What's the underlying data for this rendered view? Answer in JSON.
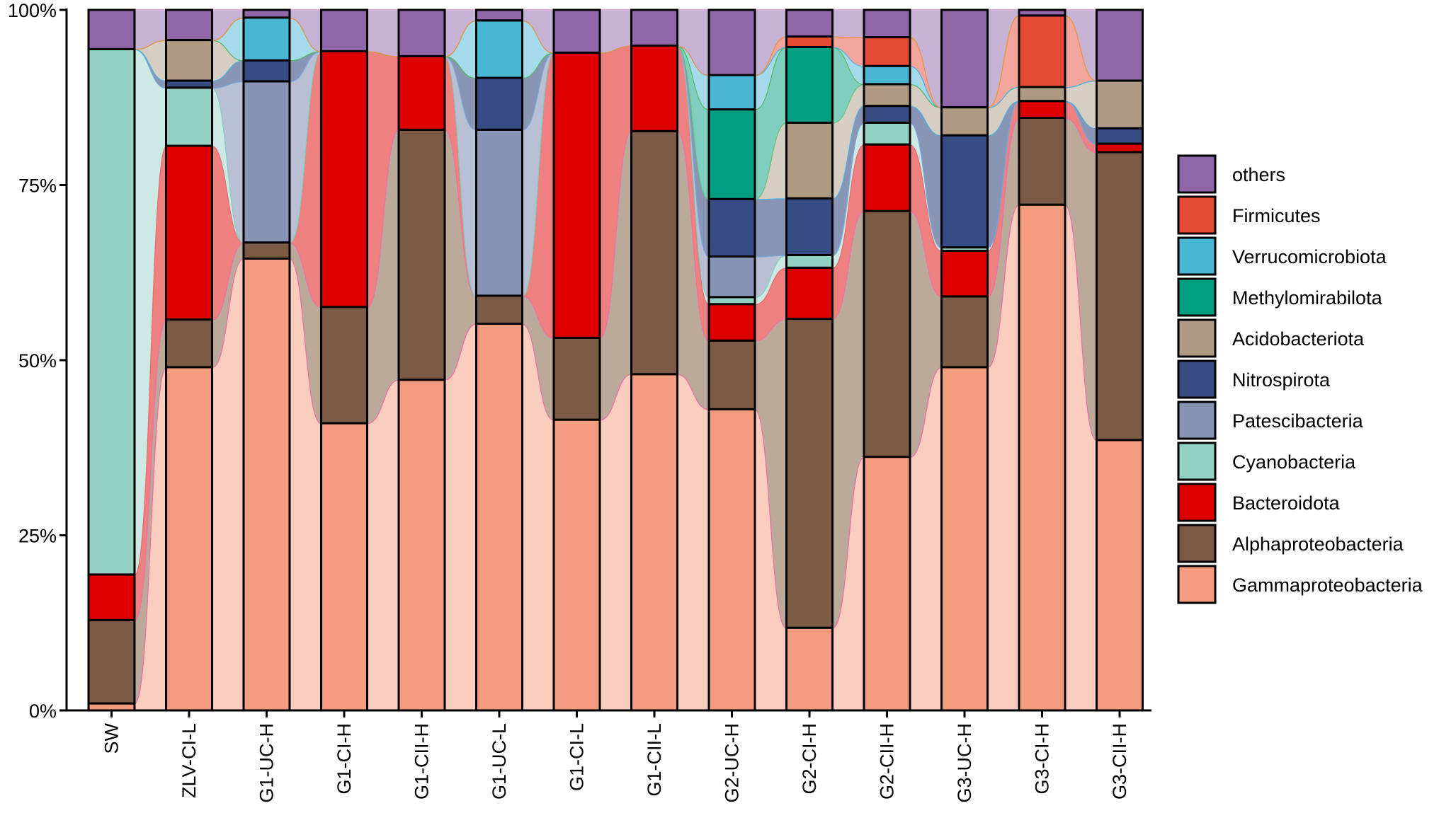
{
  "chart_data": {
    "type": "bar",
    "stacked": true,
    "normalized": true,
    "title": "",
    "xlabel": "",
    "ylabel": "",
    "ylim": [
      0,
      100
    ],
    "y_ticks": [
      {
        "value": 0,
        "label": "0%"
      },
      {
        "value": 25,
        "label": "25%"
      },
      {
        "value": 50,
        "label": "50%"
      },
      {
        "value": 75,
        "label": "75%"
      },
      {
        "value": 100,
        "label": "100%"
      }
    ],
    "legend_position": "right",
    "categories": [
      "SW",
      "ZLV-CI-L",
      "G1-UC-H",
      "G1-CI-H",
      "G1-CII-H",
      "G1-UC-L",
      "G1-CI-L",
      "G1-CII-L",
      "G2-UC-H",
      "G2-CI-H",
      "G2-CII-H",
      "G3-UC-H",
      "G3-CI-H",
      "G3-CII-H"
    ],
    "series": [
      {
        "name": "Gammaproteobacteria",
        "color": "#F29B7E",
        "flow_color": "#FBCDBE",
        "line_color": "#EE6FA8",
        "values": [
          1.0,
          49.0,
          64.5,
          41.0,
          47.2,
          55.2,
          41.5,
          48.0,
          43.0,
          11.8,
          36.2,
          49.0,
          72.2,
          38.6
        ]
      },
      {
        "name": "Alphaproteobacteria",
        "color": "#7B5B45",
        "flow_color": "#BBA99A",
        "line_color": "#EE6FA8",
        "values": [
          11.9,
          6.8,
          2.3,
          16.6,
          35.7,
          4.0,
          11.7,
          34.7,
          9.8,
          44.1,
          35.1,
          10.1,
          12.4,
          41.1
        ]
      },
      {
        "name": "Bacteroidota",
        "color": "#DD0000",
        "flow_color": "#EF8080",
        "line_color": "#E86C72",
        "values": [
          6.5,
          24.8,
          0.0,
          36.5,
          10.5,
          0.0,
          40.7,
          12.2,
          5.2,
          7.3,
          9.5,
          6.5,
          2.4,
          1.2
        ]
      },
      {
        "name": "Cyanobacteria",
        "color": "#93D2C2",
        "flow_color": "#CDE9E4",
        "line_color": "#7ED0C0",
        "values": [
          75.0,
          8.3,
          0.0,
          0.0,
          0.0,
          0.0,
          0.0,
          0.0,
          1.0,
          1.8,
          3.1,
          0.5,
          0.0,
          0.0
        ]
      },
      {
        "name": "Patescibacteria",
        "color": "#8794B5",
        "flow_color": "#B9C0D4",
        "line_color": "#78A6DD",
        "values": [
          0.0,
          0.0,
          23.0,
          0.0,
          0.0,
          23.7,
          0.0,
          0.0,
          5.8,
          0.0,
          0.0,
          0.0,
          0.0,
          0.0
        ]
      },
      {
        "name": "Nitrospirota",
        "color": "#364C82",
        "flow_color": "#8995B5",
        "line_color": "#4CB2E0",
        "values": [
          0.0,
          1.0,
          3.0,
          0.0,
          0.0,
          7.4,
          0.0,
          0.0,
          8.2,
          8.1,
          2.4,
          16.0,
          0.0,
          2.2
        ]
      },
      {
        "name": "Acidobacteriota",
        "color": "#AF9A84",
        "flow_color": "#D7CEC3",
        "line_color": "#6CC27A",
        "values": [
          0.0,
          5.8,
          0.0,
          0.0,
          0.0,
          0.0,
          0.0,
          0.0,
          0.0,
          10.8,
          3.1,
          4.0,
          2.0,
          6.8
        ]
      },
      {
        "name": "Methylomirabilota",
        "color": "#009E80",
        "flow_color": "#80CEBF",
        "line_color": "#55B85F",
        "values": [
          0.0,
          0.0,
          0.0,
          0.0,
          0.0,
          0.0,
          0.0,
          0.0,
          12.8,
          10.8,
          0.0,
          0.0,
          0.0,
          0.0
        ]
      },
      {
        "name": "Verrucomicrobiota",
        "color": "#49B6D4",
        "flow_color": "#A4DAEA",
        "line_color": "#4CB2E0",
        "values": [
          0.0,
          0.0,
          6.1,
          0.0,
          0.0,
          8.2,
          0.0,
          0.0,
          4.9,
          0.0,
          2.6,
          0.0,
          0.0,
          0.0
        ]
      },
      {
        "name": "Firmicutes",
        "color": "#E64B36",
        "flow_color": "#F2A59A",
        "line_color": "#E7923D",
        "values": [
          0.0,
          0.0,
          0.0,
          0.0,
          0.0,
          0.0,
          0.0,
          0.0,
          0.0,
          1.5,
          4.1,
          0.0,
          10.2,
          0.0
        ]
      },
      {
        "name": "others",
        "color": "#8F67A9",
        "flow_color": "#C5B2D4",
        "line_color": "#D7B2D6",
        "values": [
          5.6,
          4.3,
          1.1,
          5.9,
          6.6,
          1.5,
          6.1,
          5.1,
          9.3,
          3.8,
          3.9,
          13.9,
          0.8,
          10.1
        ]
      }
    ],
    "legend_order": [
      "others",
      "Firmicutes",
      "Verrucomicrobiota",
      "Methylomirabilota",
      "Acidobacteriota",
      "Nitrospirota",
      "Patescibacteria",
      "Cyanobacteria",
      "Bacteroidota",
      "Alphaproteobacteria",
      "Gammaproteobacteria"
    ]
  }
}
